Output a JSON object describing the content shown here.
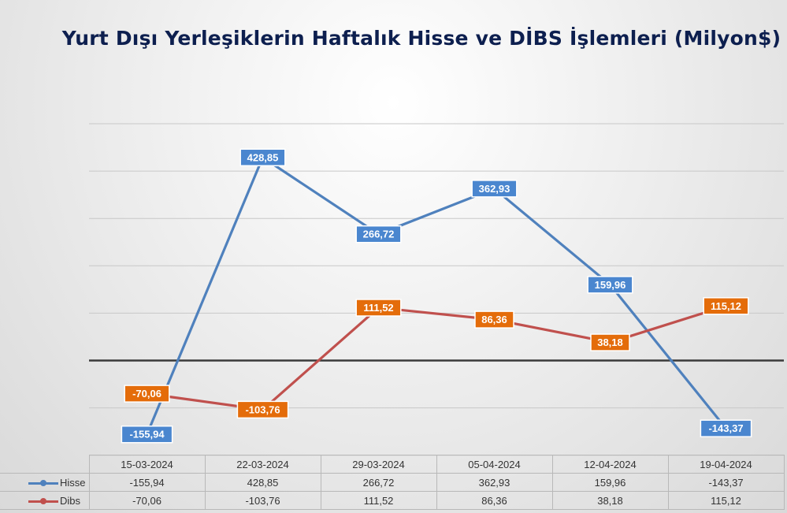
{
  "chart_data": {
    "type": "line",
    "title": "Yurt Dışı Yerleşiklerin Haftalık Hisse ve DİBS İşlemleri (Milyon$)",
    "categories": [
      "15-03-2024",
      "22-03-2024",
      "29-03-2024",
      "05-04-2024",
      "12-04-2024",
      "19-04-2024"
    ],
    "series": [
      {
        "name": "Hisse",
        "color": "#4f81bd",
        "label_color": "#4a86cf",
        "values": [
          -155.94,
          428.85,
          266.72,
          362.93,
          159.96,
          -143.37
        ],
        "labels": [
          "-155,94",
          "428,85",
          "266,72",
          "362,93",
          "159,96",
          "-143,37"
        ]
      },
      {
        "name": "Dibs",
        "color": "#c0504d",
        "label_color": "#e46c0a",
        "values": [
          -70.06,
          -103.76,
          111.52,
          86.36,
          38.18,
          115.12
        ],
        "labels": [
          "-70,06",
          "-103,76",
          "111,52",
          "86,36",
          "38,18",
          "115,12"
        ]
      }
    ],
    "ylim": [
      -200,
      500
    ],
    "grid": true,
    "legend": "data-table"
  }
}
